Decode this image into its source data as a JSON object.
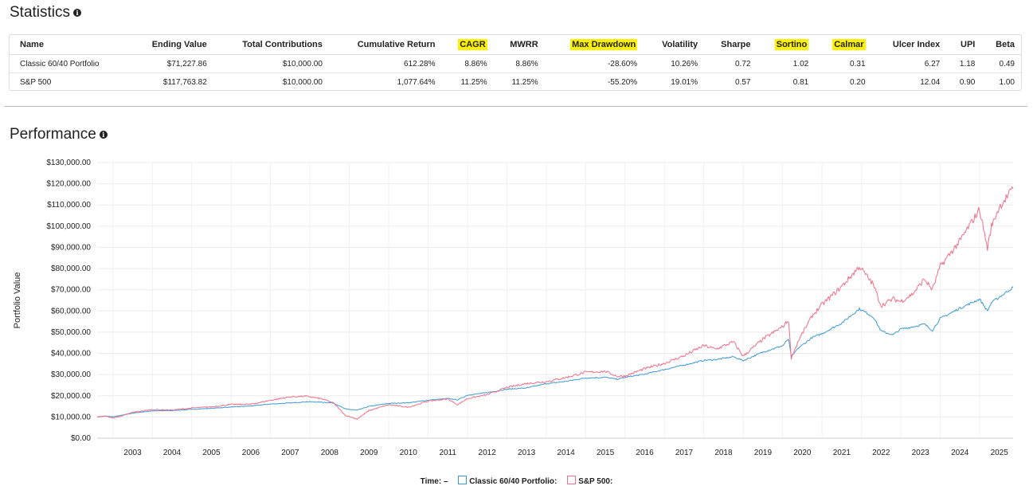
{
  "stats": {
    "title": "Statistics",
    "columns": [
      "Name",
      "Ending Value",
      "Total Contributions",
      "Cumulative Return",
      "CAGR",
      "MWRR",
      "Max Drawdown",
      "Volatility",
      "Sharpe",
      "Sortino",
      "Calmar",
      "Ulcer Index",
      "UPI",
      "Beta"
    ],
    "highlight_color": "#fff200",
    "rows": [
      [
        "Classic 60/40 Portfolio",
        "$71,227.86",
        "$10,000.00",
        "612.28%",
        "8.86%",
        "8.86%",
        "-28.60%",
        "10.26%",
        "0.72",
        "1.02",
        "0.31",
        "6.27",
        "1.18",
        "0.49"
      ],
      [
        "S&P 500",
        "$117,763.82",
        "$10,000.00",
        "1,077.64%",
        "11.25%",
        "11.25%",
        "-55.20%",
        "19.01%",
        "0.57",
        "0.81",
        "0.20",
        "12.04",
        "0.90",
        "1.00"
      ]
    ]
  },
  "performance": {
    "title": "Performance"
  },
  "legend": {
    "time_label": "Time:",
    "time_value": "–",
    "series1_label": "Classic 60/40 Portfolio:",
    "series2_label": "S&P 500:"
  },
  "chart_data": {
    "type": "line",
    "ylabel": "Portfolio Value",
    "xlabel": "",
    "ylim": [
      0,
      130000
    ],
    "y_ticks": [
      "$0.00",
      "$10,000.00",
      "$20,000.00",
      "$30,000.00",
      "$40,000.00",
      "$50,000.00",
      "$60,000.00",
      "$70,000.00",
      "$80,000.00",
      "$90,000.00",
      "$100,000.00",
      "$110,000.00",
      "$120,000.00",
      "$130,000.00"
    ],
    "x_ticks": [
      "2003",
      "2004",
      "2005",
      "2006",
      "2007",
      "2008",
      "2009",
      "2010",
      "2011",
      "2012",
      "2013",
      "2014",
      "2015",
      "2016",
      "2017",
      "2018",
      "2019",
      "2020",
      "2021",
      "2022",
      "2023",
      "2024",
      "2025"
    ],
    "xlim": [
      2002.6,
      2025.85
    ],
    "series": [
      {
        "name": "Classic 60/40 Portfolio",
        "color": "#3d9ad1",
        "x": [
          2002.6,
          2002.8,
          2003.0,
          2003.25,
          2003.5,
          2004.0,
          2004.5,
          2005.0,
          2005.5,
          2006.0,
          2006.5,
          2007.0,
          2007.5,
          2007.9,
          2008.3,
          2008.6,
          2008.9,
          2009.2,
          2009.5,
          2010.0,
          2010.5,
          2011.0,
          2011.5,
          2011.75,
          2012.0,
          2012.5,
          2013.0,
          2013.5,
          2014.0,
          2014.5,
          2015.0,
          2015.5,
          2015.8,
          2016.0,
          2016.5,
          2017.0,
          2017.5,
          2018.0,
          2018.3,
          2018.75,
          2019.0,
          2019.5,
          2020.0,
          2020.15,
          2020.22,
          2020.4,
          2020.75,
          2021.0,
          2021.5,
          2021.95,
          2022.3,
          2022.5,
          2022.8,
          2023.0,
          2023.3,
          2023.6,
          2023.8,
          2024.0,
          2024.5,
          2025.0,
          2025.2,
          2025.3,
          2025.5,
          2025.85
        ],
        "values": [
          10000,
          10400,
          10100,
          10900,
          11800,
          12900,
          13000,
          13600,
          14100,
          14700,
          15200,
          16100,
          16600,
          17200,
          17000,
          16600,
          13800,
          13200,
          15000,
          16400,
          16700,
          17900,
          18700,
          18100,
          20300,
          21500,
          23100,
          23700,
          25700,
          26800,
          28400,
          28700,
          27800,
          28700,
          30200,
          32400,
          34500,
          36700,
          37100,
          38400,
          36600,
          40600,
          43600,
          46800,
          38500,
          42500,
          47500,
          49300,
          54300,
          61000,
          57200,
          50500,
          48700,
          51500,
          52500,
          53800,
          50800,
          56400,
          61300,
          65600,
          60000,
          64000,
          66500,
          71200
        ]
      },
      {
        "name": "S&P 500",
        "color": "#ef6f88",
        "x": [
          2002.6,
          2002.8,
          2003.0,
          2003.25,
          2003.5,
          2004.0,
          2004.5,
          2005.0,
          2005.5,
          2006.0,
          2006.5,
          2007.0,
          2007.5,
          2007.9,
          2008.3,
          2008.6,
          2008.9,
          2009.2,
          2009.5,
          2010.0,
          2010.5,
          2011.0,
          2011.5,
          2011.75,
          2012.0,
          2012.5,
          2013.0,
          2013.5,
          2014.0,
          2014.5,
          2015.0,
          2015.5,
          2015.8,
          2016.0,
          2016.5,
          2017.0,
          2017.5,
          2018.0,
          2018.3,
          2018.75,
          2019.0,
          2019.5,
          2020.0,
          2020.15,
          2020.22,
          2020.4,
          2020.75,
          2021.0,
          2021.5,
          2021.95,
          2022.3,
          2022.5,
          2022.8,
          2023.0,
          2023.3,
          2023.6,
          2023.8,
          2024.0,
          2024.5,
          2025.0,
          2025.2,
          2025.3,
          2025.5,
          2025.85
        ],
        "values": [
          10000,
          10500,
          9500,
          10600,
          12200,
          13500,
          13300,
          14200,
          14800,
          15900,
          16000,
          17900,
          19500,
          19800,
          18600,
          16600,
          10800,
          9000,
          13000,
          15800,
          14600,
          17500,
          18500,
          15800,
          18700,
          20500,
          23900,
          25800,
          26700,
          28600,
          31100,
          31500,
          29200,
          29300,
          32800,
          35300,
          38900,
          43700,
          42000,
          45400,
          38700,
          46700,
          52600,
          55600,
          37800,
          46000,
          57700,
          63000,
          71500,
          81000,
          72500,
          62500,
          65700,
          64500,
          68000,
          75000,
          70000,
          81000,
          93000,
          108000,
          89500,
          100000,
          109000,
          117700
        ]
      }
    ]
  }
}
